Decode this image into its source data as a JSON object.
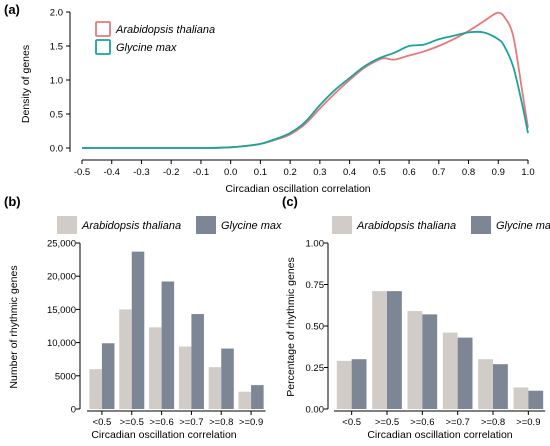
{
  "chart_data": [
    {
      "panel": "(a)",
      "type": "line",
      "xlabel": "Circadian oscillation correlation",
      "ylabel": "Density of genes",
      "xlim": [
        -0.5,
        1.0
      ],
      "ylim": [
        0.0,
        2.0
      ],
      "xticks": [
        "-0.5",
        "-0.4",
        "-0.3",
        "-0.2",
        "-0.1",
        "0.0",
        "0.1",
        "0.2",
        "0.3",
        "0.4",
        "0.5",
        "0.6",
        "0.7",
        "0.8",
        "0.9",
        "1.0"
      ],
      "xtick_values": [
        -0.5,
        -0.4,
        -0.3,
        -0.2,
        -0.1,
        0.0,
        0.1,
        0.2,
        0.3,
        0.4,
        0.5,
        0.6,
        0.7,
        0.8,
        0.9,
        1.0
      ],
      "yticks": [
        "0.0",
        "0.5",
        "1.0",
        "1.5",
        "2.0"
      ],
      "ytick_values": [
        0.0,
        0.5,
        1.0,
        1.5,
        2.0
      ],
      "legend_position": "top-left",
      "series": [
        {
          "name": "Arabidopsis thaliana",
          "color": "#e8787a",
          "x": [
            -0.5,
            -0.3,
            -0.1,
            0.0,
            0.05,
            0.1,
            0.15,
            0.2,
            0.25,
            0.3,
            0.35,
            0.4,
            0.45,
            0.5,
            0.52,
            0.55,
            0.6,
            0.65,
            0.7,
            0.75,
            0.8,
            0.85,
            0.88,
            0.9,
            0.92,
            0.95,
            0.98,
            1.0
          ],
          "y": [
            0.0,
            0.0,
            0.0,
            0.01,
            0.03,
            0.06,
            0.12,
            0.2,
            0.35,
            0.58,
            0.8,
            1.0,
            1.18,
            1.3,
            1.32,
            1.3,
            1.36,
            1.42,
            1.5,
            1.6,
            1.72,
            1.86,
            1.95,
            1.99,
            1.93,
            1.65,
            0.85,
            0.3
          ]
        },
        {
          "name": "Glycine max",
          "color": "#1aa39a",
          "x": [
            -0.5,
            -0.3,
            -0.1,
            0.0,
            0.05,
            0.1,
            0.15,
            0.2,
            0.25,
            0.3,
            0.35,
            0.4,
            0.45,
            0.5,
            0.55,
            0.6,
            0.65,
            0.7,
            0.75,
            0.8,
            0.85,
            0.9,
            0.92,
            0.95,
            0.98,
            1.0
          ],
          "y": [
            0.0,
            0.0,
            0.0,
            0.01,
            0.03,
            0.06,
            0.13,
            0.22,
            0.38,
            0.63,
            0.85,
            1.03,
            1.2,
            1.32,
            1.4,
            1.5,
            1.52,
            1.6,
            1.65,
            1.7,
            1.7,
            1.6,
            1.5,
            1.2,
            0.65,
            0.22
          ]
        }
      ]
    },
    {
      "panel": "(b)",
      "type": "bar",
      "xlabel": "Circadian oscillation correlation",
      "ylabel": "Number of rhythmic genes",
      "categories": [
        "<0.5",
        ">=0.5",
        ">=0.6",
        ">=0.7",
        ">=0.8",
        ">=0.9"
      ],
      "ylim": [
        0,
        25000
      ],
      "yticks": [
        "0",
        "5000",
        "10,000",
        "15,000",
        "20,000",
        "25,000"
      ],
      "ytick_values": [
        0,
        5000,
        10000,
        15000,
        20000,
        25000
      ],
      "legend_position": "top",
      "series": [
        {
          "name": "Arabidopsis thaliana",
          "color": "#d2ccc8",
          "values": [
            6000,
            15000,
            12300,
            9400,
            6300,
            2600
          ]
        },
        {
          "name": "Glycine max",
          "color": "#7d8694",
          "values": [
            9900,
            23700,
            19200,
            14300,
            9100,
            3600
          ]
        }
      ]
    },
    {
      "panel": "(c)",
      "type": "bar",
      "xlabel": "Circadian oscillation correlation",
      "ylabel": "Percentage of rhythmic genes",
      "categories": [
        "<0.5",
        ">=0.5",
        ">=0.6",
        ">=0.7",
        ">=0.8",
        ">=0.9"
      ],
      "ylim": [
        0.0,
        1.0
      ],
      "yticks": [
        "0.00",
        "0.25",
        "0.50",
        "0.75",
        "1.00"
      ],
      "ytick_values": [
        0.0,
        0.25,
        0.5,
        0.75,
        1.0
      ],
      "legend_position": "top",
      "series": [
        {
          "name": "Arabidopsis thaliana",
          "color": "#d2ccc8",
          "values": [
            0.29,
            0.71,
            0.59,
            0.46,
            0.3,
            0.13
          ]
        },
        {
          "name": "Glycine max",
          "color": "#7d8694",
          "values": [
            0.3,
            0.71,
            0.57,
            0.43,
            0.27,
            0.11
          ]
        }
      ]
    }
  ]
}
